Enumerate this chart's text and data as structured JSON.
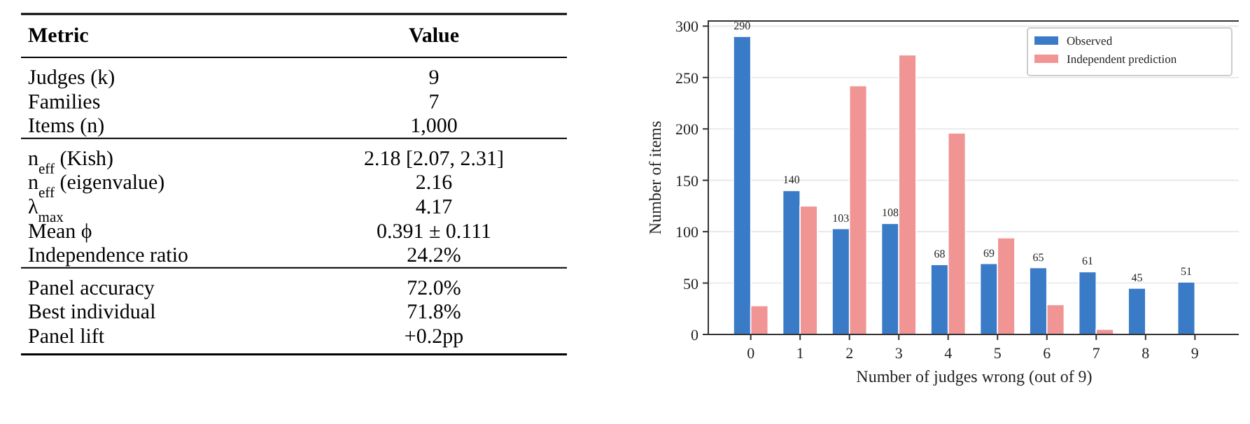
{
  "chart_data": [
    {
      "type": "other",
      "annotations": [
        "Metric",
        "Value"
      ],
      "categories": [
        "Judges (k)",
        "Families",
        "Items (n)",
        "n$_{eff}$ (Kish)",
        "n$_{eff}$ (eigenvalue)",
        "λ$_{max}$",
        "Mean ϕ",
        "Independence ratio",
        "Panel accuracy",
        "Best individual",
        "Panel lift"
      ],
      "value_labels": [
        "9",
        "7",
        "1,000",
        "2.18 [2.07, 2.31]",
        "2.16",
        "4.17",
        "0.391 ± 0.111",
        "24.2%",
        "72.0%",
        "71.8%",
        "+0.2pp"
      ]
    },
    {
      "type": "bar",
      "xlabel": "Number of judges wrong (out of 9)",
      "ylabel": "Number of items",
      "categories": [
        "0",
        "1",
        "2",
        "3",
        "4",
        "5",
        "6",
        "7",
        "8",
        "9"
      ],
      "series": [
        {
          "name": "Observed",
          "color": "#3a7bc8",
          "values": [
            290,
            140,
            103,
            108,
            68,
            69,
            65,
            61,
            45,
            51
          ],
          "value_labels": [
            "290",
            "140",
            "103",
            "108",
            "68",
            "69",
            "65",
            "61",
            "45",
            "51"
          ]
        },
        {
          "name": "Independent prediction",
          "color": "#f09494",
          "values": [
            28,
            125,
            242,
            272,
            196,
            94,
            29,
            5,
            0,
            0
          ]
        }
      ],
      "ylim": [
        0,
        305
      ],
      "yticks": [
        0,
        50,
        100,
        150,
        200,
        250,
        300
      ],
      "grid": "y",
      "legend": "top right"
    }
  ]
}
